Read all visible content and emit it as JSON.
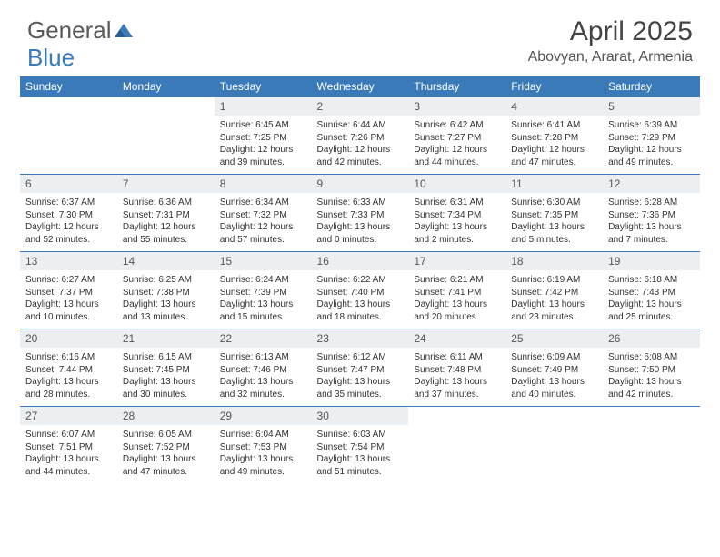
{
  "logo": {
    "text1": "General",
    "text2": "Blue",
    "text1_color": "#5a5a5a",
    "text2_color": "#3a7ab8",
    "icon_color": "#3a7ab8"
  },
  "title": {
    "month": "April 2025",
    "location": "Abovyan, Ararat, Armenia",
    "title_fontsize": 30,
    "location_fontsize": 16,
    "title_color": "#444444",
    "location_color": "#555555"
  },
  "styling": {
    "header_bg": "#3a7ab8",
    "header_text": "#ffffff",
    "daynum_bg": "#eceff1",
    "daynum_color": "#555555",
    "body_text": "#333333",
    "border_color": "#3a7ab8",
    "header_fontsize": 12,
    "daynum_fontsize": 12,
    "body_fontsize": 10
  },
  "weekdays": [
    "Sunday",
    "Monday",
    "Tuesday",
    "Wednesday",
    "Thursday",
    "Friday",
    "Saturday"
  ],
  "weeks": [
    [
      null,
      null,
      {
        "n": "1",
        "sunrise": "6:45 AM",
        "sunset": "7:25 PM",
        "daylight": "12 hours and 39 minutes."
      },
      {
        "n": "2",
        "sunrise": "6:44 AM",
        "sunset": "7:26 PM",
        "daylight": "12 hours and 42 minutes."
      },
      {
        "n": "3",
        "sunrise": "6:42 AM",
        "sunset": "7:27 PM",
        "daylight": "12 hours and 44 minutes."
      },
      {
        "n": "4",
        "sunrise": "6:41 AM",
        "sunset": "7:28 PM",
        "daylight": "12 hours and 47 minutes."
      },
      {
        "n": "5",
        "sunrise": "6:39 AM",
        "sunset": "7:29 PM",
        "daylight": "12 hours and 49 minutes."
      }
    ],
    [
      {
        "n": "6",
        "sunrise": "6:37 AM",
        "sunset": "7:30 PM",
        "daylight": "12 hours and 52 minutes."
      },
      {
        "n": "7",
        "sunrise": "6:36 AM",
        "sunset": "7:31 PM",
        "daylight": "12 hours and 55 minutes."
      },
      {
        "n": "8",
        "sunrise": "6:34 AM",
        "sunset": "7:32 PM",
        "daylight": "12 hours and 57 minutes."
      },
      {
        "n": "9",
        "sunrise": "6:33 AM",
        "sunset": "7:33 PM",
        "daylight": "13 hours and 0 minutes."
      },
      {
        "n": "10",
        "sunrise": "6:31 AM",
        "sunset": "7:34 PM",
        "daylight": "13 hours and 2 minutes."
      },
      {
        "n": "11",
        "sunrise": "6:30 AM",
        "sunset": "7:35 PM",
        "daylight": "13 hours and 5 minutes."
      },
      {
        "n": "12",
        "sunrise": "6:28 AM",
        "sunset": "7:36 PM",
        "daylight": "13 hours and 7 minutes."
      }
    ],
    [
      {
        "n": "13",
        "sunrise": "6:27 AM",
        "sunset": "7:37 PM",
        "daylight": "13 hours and 10 minutes."
      },
      {
        "n": "14",
        "sunrise": "6:25 AM",
        "sunset": "7:38 PM",
        "daylight": "13 hours and 13 minutes."
      },
      {
        "n": "15",
        "sunrise": "6:24 AM",
        "sunset": "7:39 PM",
        "daylight": "13 hours and 15 minutes."
      },
      {
        "n": "16",
        "sunrise": "6:22 AM",
        "sunset": "7:40 PM",
        "daylight": "13 hours and 18 minutes."
      },
      {
        "n": "17",
        "sunrise": "6:21 AM",
        "sunset": "7:41 PM",
        "daylight": "13 hours and 20 minutes."
      },
      {
        "n": "18",
        "sunrise": "6:19 AM",
        "sunset": "7:42 PM",
        "daylight": "13 hours and 23 minutes."
      },
      {
        "n": "19",
        "sunrise": "6:18 AM",
        "sunset": "7:43 PM",
        "daylight": "13 hours and 25 minutes."
      }
    ],
    [
      {
        "n": "20",
        "sunrise": "6:16 AM",
        "sunset": "7:44 PM",
        "daylight": "13 hours and 28 minutes."
      },
      {
        "n": "21",
        "sunrise": "6:15 AM",
        "sunset": "7:45 PM",
        "daylight": "13 hours and 30 minutes."
      },
      {
        "n": "22",
        "sunrise": "6:13 AM",
        "sunset": "7:46 PM",
        "daylight": "13 hours and 32 minutes."
      },
      {
        "n": "23",
        "sunrise": "6:12 AM",
        "sunset": "7:47 PM",
        "daylight": "13 hours and 35 minutes."
      },
      {
        "n": "24",
        "sunrise": "6:11 AM",
        "sunset": "7:48 PM",
        "daylight": "13 hours and 37 minutes."
      },
      {
        "n": "25",
        "sunrise": "6:09 AM",
        "sunset": "7:49 PM",
        "daylight": "13 hours and 40 minutes."
      },
      {
        "n": "26",
        "sunrise": "6:08 AM",
        "sunset": "7:50 PM",
        "daylight": "13 hours and 42 minutes."
      }
    ],
    [
      {
        "n": "27",
        "sunrise": "6:07 AM",
        "sunset": "7:51 PM",
        "daylight": "13 hours and 44 minutes."
      },
      {
        "n": "28",
        "sunrise": "6:05 AM",
        "sunset": "7:52 PM",
        "daylight": "13 hours and 47 minutes."
      },
      {
        "n": "29",
        "sunrise": "6:04 AM",
        "sunset": "7:53 PM",
        "daylight": "13 hours and 49 minutes."
      },
      {
        "n": "30",
        "sunrise": "6:03 AM",
        "sunset": "7:54 PM",
        "daylight": "13 hours and 51 minutes."
      },
      null,
      null,
      null
    ]
  ],
  "labels": {
    "sunrise": "Sunrise:",
    "sunset": "Sunset:",
    "daylight": "Daylight:"
  }
}
